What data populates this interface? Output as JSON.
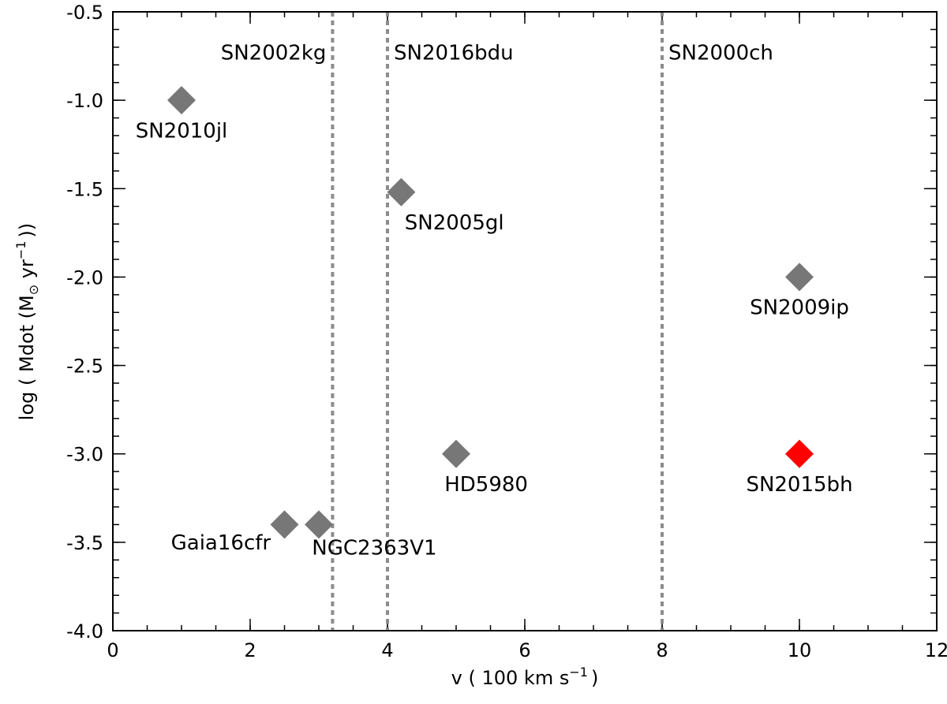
{
  "chart_data": {
    "type": "scatter",
    "title": "",
    "xlabel_prefix": "v ( 100 km s",
    "xlabel_sup": "−1",
    "xlabel_suffix": ")",
    "ylabel_prefix": "log ( Mdot (M",
    "ylabel_sun": "⊙",
    "ylabel_mid": " yr",
    "ylabel_sup": "−1",
    "ylabel_suffix": "))",
    "xlim": [
      0,
      12
    ],
    "ylim": [
      -4.0,
      -0.5
    ],
    "x_ticks": [
      0,
      2,
      4,
      6,
      8,
      10,
      12
    ],
    "x_tick_labels": [
      "0",
      "2",
      "4",
      "6",
      "8",
      "10",
      "12"
    ],
    "y_ticks": [
      -4.0,
      -3.5,
      -3.0,
      -2.5,
      -2.0,
      -1.5,
      -1.0,
      -0.5
    ],
    "y_tick_labels": [
      "-4.0",
      "-3.5",
      "-3.0",
      "-2.5",
      "-2.0",
      "-1.5",
      "-1.0",
      "-0.5"
    ],
    "x_minor_step": 0.5,
    "y_minor_step": 0.1,
    "colors": {
      "marker": "#777777",
      "highlight": "#ff0000",
      "refline": "#8c8c8c"
    },
    "points": [
      {
        "name": "SN2010jl",
        "x": 1.0,
        "y": -1.0,
        "highlight": false,
        "label_dx": 0.0,
        "label_dy": -0.17,
        "anchor": "middle"
      },
      {
        "name": "SN2005gl",
        "x": 4.2,
        "y": -1.52,
        "highlight": false,
        "label_dx": 0.05,
        "label_dy": -0.17,
        "anchor": "start"
      },
      {
        "name": "SN2009ip",
        "x": 10.0,
        "y": -2.0,
        "highlight": false,
        "label_dx": 0.0,
        "label_dy": -0.17,
        "anchor": "middle"
      },
      {
        "name": "HD5980",
        "x": 5.0,
        "y": -3.0,
        "highlight": false,
        "label_dx": -0.17,
        "label_dy": -0.17,
        "anchor": "start"
      },
      {
        "name": "SN2015bh",
        "x": 10.0,
        "y": -3.0,
        "highlight": true,
        "label_dx": 0.0,
        "label_dy": -0.17,
        "anchor": "middle"
      },
      {
        "name": "Gaia16cfr",
        "x": 2.5,
        "y": -3.4,
        "highlight": false,
        "label_dx": -0.2,
        "label_dy": -0.1,
        "anchor": "end"
      },
      {
        "name": "NGC2363V1",
        "x": 3.0,
        "y": -3.4,
        "highlight": false,
        "label_dx": -0.1,
        "label_dy": -0.13,
        "anchor": "start"
      }
    ],
    "reference_lines": [
      {
        "name": "SN2002kg",
        "x": 3.2,
        "label_side": "left"
      },
      {
        "name": "SN2016bdu",
        "x": 4.0,
        "label_side": "right"
      },
      {
        "name": "SN2000ch",
        "x": 8.0,
        "label_side": "right"
      }
    ],
    "reference_label_y": -0.77
  }
}
